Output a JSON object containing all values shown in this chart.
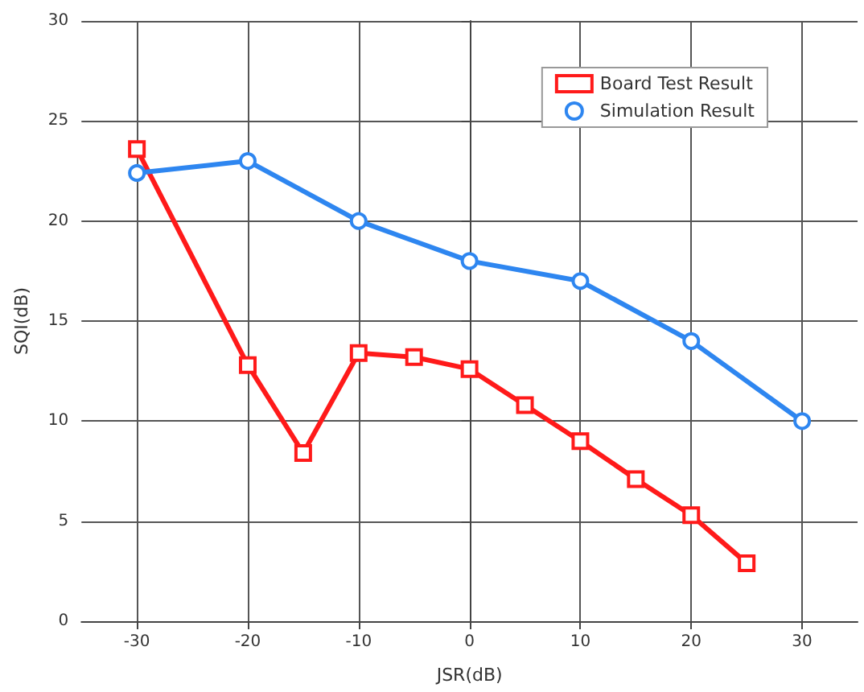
{
  "chart_data": {
    "type": "line",
    "xlabel": "JSR(dB)",
    "ylabel": "SQI(dB)",
    "xlim": [
      -35,
      35
    ],
    "xticks": [
      -30,
      -20,
      -10,
      0,
      10,
      20,
      30
    ],
    "ylim": [
      0,
      30
    ],
    "yticks": [
      0,
      5,
      10,
      15,
      20,
      25,
      30
    ],
    "grid": true,
    "legend": "top right",
    "line_style": "solid",
    "series": [
      {
        "name": "Board Test Result",
        "color": "#ff1a1a",
        "marker": "square",
        "x": [
          -30,
          -20,
          -15,
          -10,
          -5,
          0,
          5,
          10,
          15,
          20,
          25
        ],
        "values": [
          23.6,
          12.8,
          8.4,
          13.4,
          13.2,
          12.6,
          10.8,
          9.0,
          7.1,
          5.3,
          2.9
        ]
      },
      {
        "name": "Simulation Result",
        "color": "#2e86f0",
        "marker": "circle",
        "x": [
          -30,
          -20,
          -10,
          0,
          10,
          20,
          30
        ],
        "values": [
          22.4,
          23.0,
          20.0,
          18.0,
          17.0,
          14.0,
          10.0
        ]
      }
    ]
  }
}
